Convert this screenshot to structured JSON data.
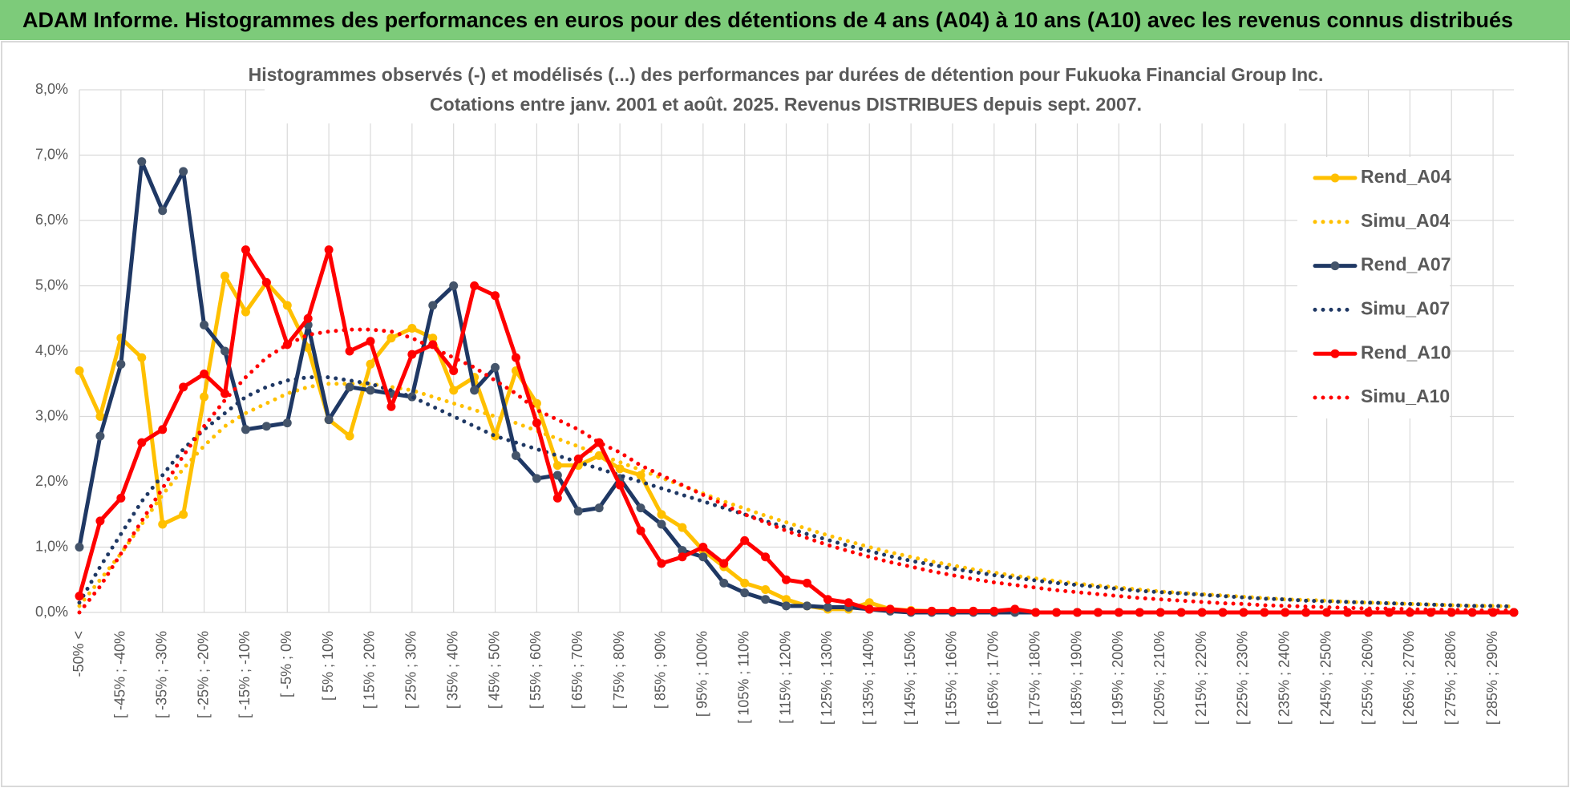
{
  "header": {
    "title": "ADAM Informe. Histogrammes des performances en euros pour des détentions de 4 ans (A04) à 10 ans (A10) avec les revenus connus distribués"
  },
  "chart_data": {
    "type": "line",
    "title": "Histogrammes observés (-) et modélisés (...) des performances par durées de détention pour Fukuoka Financial Group Inc.",
    "subtitle": "Cotations entre janv. 2001 et août. 2025. Revenus DISTRIBUES depuis sept. 2007.",
    "categories": [
      "-50% <",
      null,
      "[ -45% ; -40%",
      null,
      "[ -35% ; -30%",
      null,
      "[ -25% ; -20%",
      null,
      "[ -15% ; -10%",
      null,
      "[ -5% ; 0%",
      null,
      "[ 5% ; 10%",
      null,
      "[ 15% ; 20%",
      null,
      "[ 25% ; 30%",
      null,
      "[ 35% ; 40%",
      null,
      "[ 45% ; 50%",
      null,
      "[ 55% ; 60%",
      null,
      "[ 65% ; 70%",
      null,
      "[ 75% ; 80%",
      null,
      "[ 85% ; 90%",
      null,
      "[ 95% ; 100%",
      null,
      "[ 105% ; 110%",
      null,
      "[ 115% ; 120%",
      null,
      "[ 125% ; 130%",
      null,
      "[ 135% ; 140%",
      null,
      "[ 145% ; 150%",
      null,
      "[ 155% ; 160%",
      null,
      "[ 165% ; 170%",
      null,
      "[ 175% ; 180%",
      null,
      "[ 185% ; 190%",
      null,
      "[ 195% ; 200%",
      null,
      "[ 205% ; 210%",
      null,
      "[ 215% ; 220%",
      null,
      "[ 225% ; 230%",
      null,
      "[ 235% ; 240%",
      null,
      "[ 245% ; 250%",
      null,
      "[ 255% ; 260%",
      null,
      "[ 265% ; 270%",
      null,
      "[ 275% ; 280%",
      null,
      "[ 285% ; 290%",
      null
    ],
    "series": [
      {
        "name": "Rend_A04",
        "color": "#ffc000",
        "dash": "solid",
        "values": [
          3.7,
          3.0,
          4.2,
          3.9,
          1.35,
          1.5,
          3.3,
          5.15,
          4.6,
          5.05,
          4.7,
          4.05,
          2.95,
          2.7,
          3.8,
          4.2,
          4.35,
          4.2,
          3.4,
          3.6,
          2.7,
          3.7,
          3.2,
          2.25,
          2.25,
          2.4,
          2.2,
          2.1,
          1.5,
          1.3,
          0.95,
          0.7,
          0.45,
          0.35,
          0.2,
          0.1,
          0.05,
          0.05,
          0.15,
          0.05,
          0.03,
          0.02,
          0.02,
          0.02,
          0.01,
          0.01,
          0,
          0,
          0,
          0,
          0,
          0,
          0,
          0,
          0,
          0,
          0,
          0,
          0,
          0,
          0,
          0,
          0,
          0,
          0,
          0,
          0,
          0,
          0,
          0
        ]
      },
      {
        "name": "Simu_A04",
        "color": "#ffc000",
        "dash": "dotted",
        "values": [
          0.1,
          0.5,
          0.9,
          1.35,
          1.8,
          2.2,
          2.55,
          2.85,
          3.05,
          3.2,
          3.35,
          3.45,
          3.5,
          3.5,
          3.5,
          3.45,
          3.4,
          3.3,
          3.2,
          3.1,
          3.0,
          2.9,
          2.78,
          2.66,
          2.54,
          2.42,
          2.3,
          2.18,
          2.06,
          1.94,
          1.82,
          1.7,
          1.59,
          1.48,
          1.38,
          1.28,
          1.18,
          1.09,
          1.0,
          0.92,
          0.85,
          0.78,
          0.72,
          0.66,
          0.61,
          0.56,
          0.52,
          0.48,
          0.44,
          0.41,
          0.38,
          0.35,
          0.32,
          0.3,
          0.28,
          0.26,
          0.24,
          0.22,
          0.2,
          0.19,
          0.18,
          0.16,
          0.15,
          0.14,
          0.13,
          0.12,
          0.11,
          0.1,
          0.1,
          0.09
        ]
      },
      {
        "name": "Rend_A07",
        "color": "#1f3864",
        "dash": "solid",
        "marker": "#44546a",
        "values": [
          1.0,
          2.7,
          3.8,
          6.9,
          6.15,
          6.75,
          4.4,
          4.0,
          2.8,
          2.85,
          2.9,
          4.4,
          2.95,
          3.45,
          3.4,
          3.35,
          3.3,
          4.7,
          5.0,
          3.4,
          3.75,
          2.4,
          2.05,
          2.1,
          1.55,
          1.6,
          2.05,
          1.6,
          1.35,
          0.95,
          0.85,
          0.45,
          0.3,
          0.2,
          0.1,
          0.1,
          0.08,
          0.08,
          0.05,
          0.02,
          0,
          0,
          0,
          0,
          0,
          0,
          0,
          0,
          0,
          0,
          0,
          0,
          0,
          0,
          0,
          0,
          0,
          0,
          0,
          0,
          0,
          0,
          0,
          0,
          0,
          0,
          0,
          0,
          0,
          0
        ]
      },
      {
        "name": "Simu_A07",
        "color": "#1f3864",
        "dash": "dotted",
        "values": [
          0.15,
          0.7,
          1.2,
          1.7,
          2.1,
          2.5,
          2.8,
          3.05,
          3.3,
          3.45,
          3.55,
          3.6,
          3.6,
          3.55,
          3.5,
          3.4,
          3.3,
          3.15,
          3.0,
          2.85,
          2.7,
          2.6,
          2.5,
          2.4,
          2.3,
          2.2,
          2.1,
          2.0,
          1.9,
          1.8,
          1.7,
          1.6,
          1.5,
          1.4,
          1.3,
          1.2,
          1.11,
          1.02,
          0.94,
          0.86,
          0.79,
          0.73,
          0.67,
          0.62,
          0.57,
          0.53,
          0.49,
          0.45,
          0.42,
          0.39,
          0.36,
          0.33,
          0.31,
          0.29,
          0.27,
          0.25,
          0.23,
          0.21,
          0.2,
          0.18,
          0.17,
          0.16,
          0.15,
          0.14,
          0.13,
          0.12,
          0.11,
          0.1,
          0.1,
          0.09
        ]
      },
      {
        "name": "Rend_A10",
        "color": "#ff0000",
        "dash": "solid",
        "values": [
          0.25,
          1.4,
          1.75,
          2.6,
          2.8,
          3.45,
          3.65,
          3.35,
          5.55,
          5.05,
          4.1,
          4.5,
          5.55,
          4.0,
          4.15,
          3.15,
          3.95,
          4.1,
          3.7,
          5.0,
          4.85,
          3.9,
          2.9,
          1.75,
          2.35,
          2.6,
          1.95,
          1.25,
          0.75,
          0.85,
          1.0,
          0.75,
          1.1,
          0.85,
          0.5,
          0.45,
          0.2,
          0.15,
          0.05,
          0.05,
          0.02,
          0.02,
          0.02,
          0.02,
          0.02,
          0.05,
          0,
          0,
          0,
          0,
          0,
          0,
          0,
          0,
          0,
          0,
          0,
          0,
          0,
          0,
          0,
          0,
          0,
          0,
          0,
          0,
          0,
          0,
          0,
          0
        ]
      },
      {
        "name": "Simu_A10",
        "color": "#ff0000",
        "dash": "dotted",
        "values": [
          0.0,
          0.4,
          0.9,
          1.4,
          1.9,
          2.4,
          2.85,
          3.25,
          3.6,
          3.9,
          4.1,
          4.25,
          4.3,
          4.33,
          4.33,
          4.3,
          4.2,
          4.05,
          3.9,
          3.75,
          3.55,
          3.35,
          3.1,
          2.95,
          2.8,
          2.6,
          2.45,
          2.25,
          2.1,
          1.95,
          1.8,
          1.65,
          1.5,
          1.38,
          1.25,
          1.14,
          1.03,
          0.94,
          0.85,
          0.77,
          0.7,
          0.63,
          0.57,
          0.51,
          0.46,
          0.42,
          0.38,
          0.34,
          0.31,
          0.28,
          0.25,
          0.22,
          0.2,
          0.18,
          0.16,
          0.14,
          0.13,
          0.11,
          0.1,
          0.09,
          0.08,
          0.07,
          0.06,
          0.06,
          0.05,
          0.04,
          0.04,
          0.03,
          0.03,
          0.03
        ]
      }
    ],
    "ylim": [
      0,
      8
    ],
    "yticks": [
      {
        "value": 0,
        "label": "0,0%"
      },
      {
        "value": 1,
        "label": "1,0%"
      },
      {
        "value": 2,
        "label": "2,0%"
      },
      {
        "value": 3,
        "label": "3,0%"
      },
      {
        "value": 4,
        "label": "4,0%"
      },
      {
        "value": 5,
        "label": "5,0%"
      },
      {
        "value": 6,
        "label": "6,0%"
      },
      {
        "value": 7,
        "label": "7,0%"
      },
      {
        "value": 8,
        "label": "8,0%"
      }
    ],
    "grid": true,
    "legend": "right"
  }
}
